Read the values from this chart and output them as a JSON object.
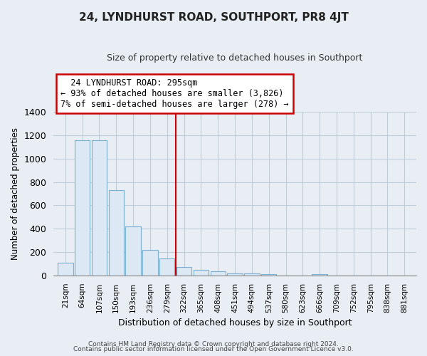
{
  "title": "24, LYNDHURST ROAD, SOUTHPORT, PR8 4JT",
  "subtitle": "Size of property relative to detached houses in Southport",
  "xlabel": "Distribution of detached houses by size in Southport",
  "ylabel": "Number of detached properties",
  "bar_labels": [
    "21sqm",
    "64sqm",
    "107sqm",
    "150sqm",
    "193sqm",
    "236sqm",
    "279sqm",
    "322sqm",
    "365sqm",
    "408sqm",
    "451sqm",
    "494sqm",
    "537sqm",
    "580sqm",
    "623sqm",
    "666sqm",
    "709sqm",
    "752sqm",
    "795sqm",
    "838sqm",
    "881sqm"
  ],
  "bar_values": [
    110,
    1155,
    1155,
    730,
    420,
    220,
    145,
    75,
    50,
    35,
    20,
    15,
    10,
    0,
    0,
    10,
    0,
    0,
    0,
    0,
    0
  ],
  "bar_color_fill": "#dce8f3",
  "bar_color_edge": "#7bafd4",
  "vline_x_idx": 7,
  "vline_color": "#cc0000",
  "annotation_title": "24 LYNDHURST ROAD: 295sqm",
  "annotation_line1": "← 93% of detached houses are smaller (3,826)",
  "annotation_line2": "7% of semi-detached houses are larger (278) →",
  "annotation_box_edgecolor": "#cc0000",
  "annotation_box_facecolor": "#ffffff",
  "ylim": [
    0,
    1400
  ],
  "yticks": [
    0,
    200,
    400,
    600,
    800,
    1000,
    1200,
    1400
  ],
  "footer1": "Contains HM Land Registry data © Crown copyright and database right 2024.",
  "footer2": "Contains public sector information licensed under the Open Government Licence v3.0.",
  "background_color": "#e8eef4",
  "plot_bg_color": "#e8eef4",
  "grid_color": "#c0ccd8"
}
